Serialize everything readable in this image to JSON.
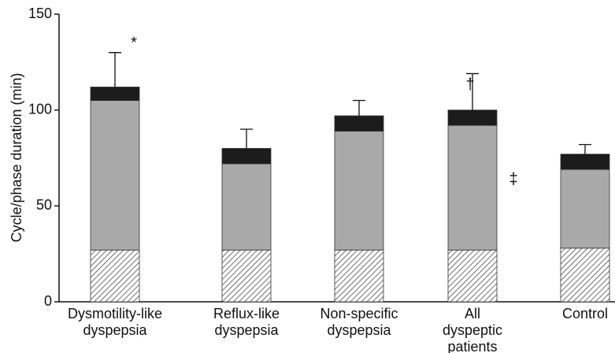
{
  "chart_data": {
    "type": "stacked-bar",
    "ylabel": "Cycle/phase duration (min)",
    "categories": [
      [
        "Dysmotility-like",
        "dyspepsia"
      ],
      [
        "Reflux-like",
        "dyspepsia"
      ],
      [
        "Non-specific",
        "dyspepsia"
      ],
      [
        "All",
        "dyspeptic",
        "patients"
      ],
      [
        "Control"
      ]
    ],
    "series": [
      {
        "color": "#ffffff",
        "hatch": true,
        "values": [
          27,
          27,
          27,
          27,
          28
        ]
      },
      {
        "color": "#a9a9a9",
        "values": [
          78,
          45,
          62,
          65,
          41
        ]
      },
      {
        "color": "#1c1c1c",
        "values": [
          7,
          8,
          8,
          8,
          8
        ]
      }
    ],
    "errors": [
      18,
      10,
      8,
      19,
      5
    ],
    "annotations": [
      "*",
      "†",
      "‡"
    ],
    "ylim": [
      0,
      150
    ],
    "yticks": [
      0,
      50,
      100,
      150
    ],
    "grid": false
  }
}
